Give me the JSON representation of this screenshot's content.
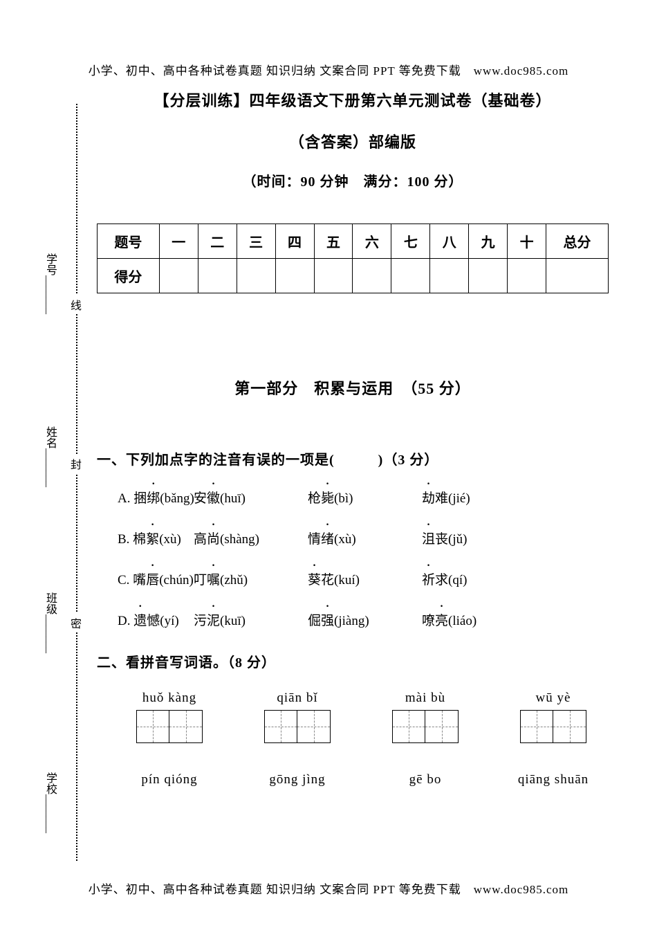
{
  "header": "小学、初中、高中各种试卷真题 知识归纳 文案合同 PPT 等免费下载　www.doc985.com",
  "footer": "小学、初中、高中各种试卷真题 知识归纳 文案合同 PPT 等免费下载　www.doc985.com",
  "title1": "【分层训练】四年级语文下册第六单元测试卷（基础卷）",
  "title2": "（含答案）部编版",
  "time_info": "（时间：90 分钟　满分：100 分）",
  "score_table": {
    "headers": [
      "题号",
      "一",
      "二",
      "三",
      "四",
      "五",
      "六",
      "七",
      "八",
      "九",
      "十",
      "总分"
    ],
    "row_label": "得分"
  },
  "section1_title": "第一部分　积累与运用　（55 分）",
  "q1": {
    "title": "一、下列加点字的注音有误的一项是(　　　)（3 分）",
    "options": {
      "A": {
        "label": "A.",
        "items": [
          {
            "pre": "捆",
            "dot": "绑",
            "py": "(bǎng)"
          },
          {
            "pre": "安",
            "dot": "徽",
            "py": "(huī)"
          },
          {
            "pre": "枪",
            "dot": "毙",
            "py": "(bì)"
          },
          {
            "pre": "",
            "dot": "劫",
            "post": "难",
            "py": "(jié)"
          }
        ]
      },
      "B": {
        "label": "B.",
        "items": [
          {
            "pre": "棉",
            "dot": "絮",
            "py": "(xù)"
          },
          {
            "pre": "高",
            "dot": "尚",
            "py": "(shàng)"
          },
          {
            "pre": "情",
            "dot": "绪",
            "py": "(xù)"
          },
          {
            "pre": "",
            "dot": "沮",
            "post": "丧",
            "py": "(jǔ)"
          }
        ]
      },
      "C": {
        "label": "C.",
        "items": [
          {
            "pre": "嘴",
            "dot": "唇",
            "py": "(chún)"
          },
          {
            "pre": "叮",
            "dot": "嘱",
            "py": "(zhǔ)"
          },
          {
            "pre": "",
            "dot": "葵",
            "post": "花",
            "py": "(kuí)"
          },
          {
            "pre": "",
            "dot": "祈",
            "post": "求",
            "py": "(qí)"
          }
        ]
      },
      "D": {
        "label": "D.",
        "items": [
          {
            "pre": "",
            "dot": "遗",
            "post": "憾",
            "py": "(yí)"
          },
          {
            "pre": "污",
            "dot": "泥",
            "py": "(kuī)"
          },
          {
            "pre": "倔",
            "dot": "强",
            "py": "(jiàng)"
          },
          {
            "pre": "嘹",
            "dot": "亮",
            "py": "(liáo)"
          }
        ]
      }
    }
  },
  "q2": {
    "title": "二、看拼音写词语。（8 分）",
    "row1": [
      "huǒ kàng",
      "qiān bǐ",
      "mài bù",
      "wū yè"
    ],
    "row2": [
      "pín qióng",
      "gōng jìng",
      "gē bo",
      "qiāng shuān"
    ]
  },
  "binding": {
    "school": "学校",
    "class": "班级",
    "name": "姓名",
    "id": "学号",
    "mi": "密",
    "feng": "封",
    "xian": "线"
  }
}
